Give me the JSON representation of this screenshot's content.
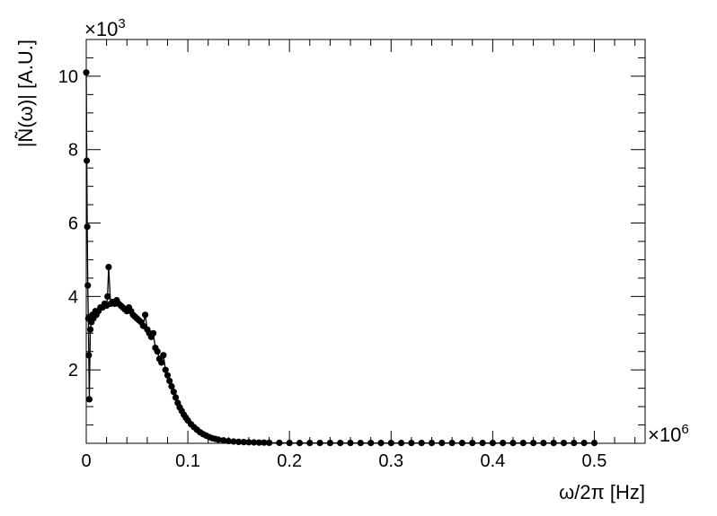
{
  "chart_data": {
    "type": "scatter",
    "xlabel": "ω/2π [Hz]",
    "ylabel": "|Ñ(ω)| [A.U.]",
    "x_multiplier": "×10",
    "x_multiplier_exp": "6",
    "y_multiplier": "×10",
    "y_multiplier_exp": "3",
    "xlim": [
      0,
      0.55
    ],
    "ylim": [
      0,
      11.0
    ],
    "x_ticks": [
      0,
      0.1,
      0.2,
      0.3,
      0.4,
      0.5
    ],
    "x_tick_labels": [
      "0",
      "0.1",
      "0.2",
      "0.3",
      "0.4",
      "0.5"
    ],
    "y_ticks": [
      2,
      4,
      6,
      8,
      10
    ],
    "y_tick_labels": [
      "2",
      "4",
      "6",
      "8",
      "10"
    ],
    "grid": false,
    "marker_color": "#000000",
    "series": [
      {
        "x": [
          0.0,
          0.0005,
          0.001,
          0.0015,
          0.002,
          0.0025,
          0.003,
          0.004,
          0.005,
          0.006,
          0.007,
          0.008,
          0.009,
          0.01,
          0.012,
          0.014,
          0.016,
          0.018,
          0.02,
          0.021,
          0.022,
          0.024,
          0.026,
          0.028,
          0.03,
          0.032,
          0.034,
          0.036,
          0.038,
          0.04,
          0.042,
          0.044,
          0.046,
          0.048,
          0.05,
          0.052,
          0.054,
          0.056,
          0.058,
          0.06,
          0.062,
          0.064,
          0.066,
          0.068,
          0.07,
          0.072,
          0.074,
          0.076,
          0.078,
          0.08,
          0.082,
          0.084,
          0.086,
          0.088,
          0.09,
          0.092,
          0.094,
          0.096,
          0.098,
          0.1,
          0.103,
          0.106,
          0.109,
          0.112,
          0.115,
          0.118,
          0.121,
          0.124,
          0.127,
          0.13,
          0.135,
          0.14,
          0.145,
          0.15,
          0.155,
          0.16,
          0.165,
          0.17,
          0.175,
          0.18,
          0.19,
          0.2,
          0.21,
          0.22,
          0.23,
          0.24,
          0.25,
          0.26,
          0.27,
          0.28,
          0.29,
          0.3,
          0.31,
          0.32,
          0.33,
          0.34,
          0.35,
          0.36,
          0.37,
          0.38,
          0.39,
          0.4,
          0.41,
          0.42,
          0.43,
          0.44,
          0.45,
          0.46,
          0.47,
          0.48,
          0.49,
          0.5
        ],
        "y": [
          10.1,
          7.7,
          5.9,
          4.3,
          3.4,
          2.4,
          1.2,
          3.1,
          3.3,
          3.5,
          3.4,
          3.5,
          3.6,
          3.5,
          3.6,
          3.7,
          3.7,
          3.8,
          3.75,
          4.0,
          4.8,
          3.8,
          3.85,
          3.8,
          3.9,
          3.8,
          3.75,
          3.7,
          3.65,
          3.6,
          3.7,
          3.6,
          3.5,
          3.45,
          3.4,
          3.35,
          3.3,
          3.2,
          3.5,
          3.1,
          3.0,
          2.9,
          3.0,
          2.6,
          2.5,
          2.3,
          2.2,
          2.4,
          2.0,
          1.85,
          1.7,
          1.55,
          1.4,
          1.25,
          1.1,
          0.98,
          0.88,
          0.78,
          0.7,
          0.62,
          0.52,
          0.44,
          0.37,
          0.3,
          0.25,
          0.21,
          0.17,
          0.14,
          0.12,
          0.1,
          0.08,
          0.06,
          0.05,
          0.04,
          0.035,
          0.03,
          0.025,
          0.02,
          0.02,
          0.015,
          0.015,
          0.01,
          0.01,
          0.01,
          0.01,
          0.01,
          0.01,
          0.01,
          0.01,
          0.01,
          0.01,
          0.01,
          0.01,
          0.01,
          0.01,
          0.01,
          0.01,
          0.01,
          0.01,
          0.01,
          0.01,
          0.01,
          0.01,
          0.01,
          0.01,
          0.01,
          0.01,
          0.01,
          0.01,
          0.01,
          0.01,
          0.01
        ]
      }
    ]
  }
}
